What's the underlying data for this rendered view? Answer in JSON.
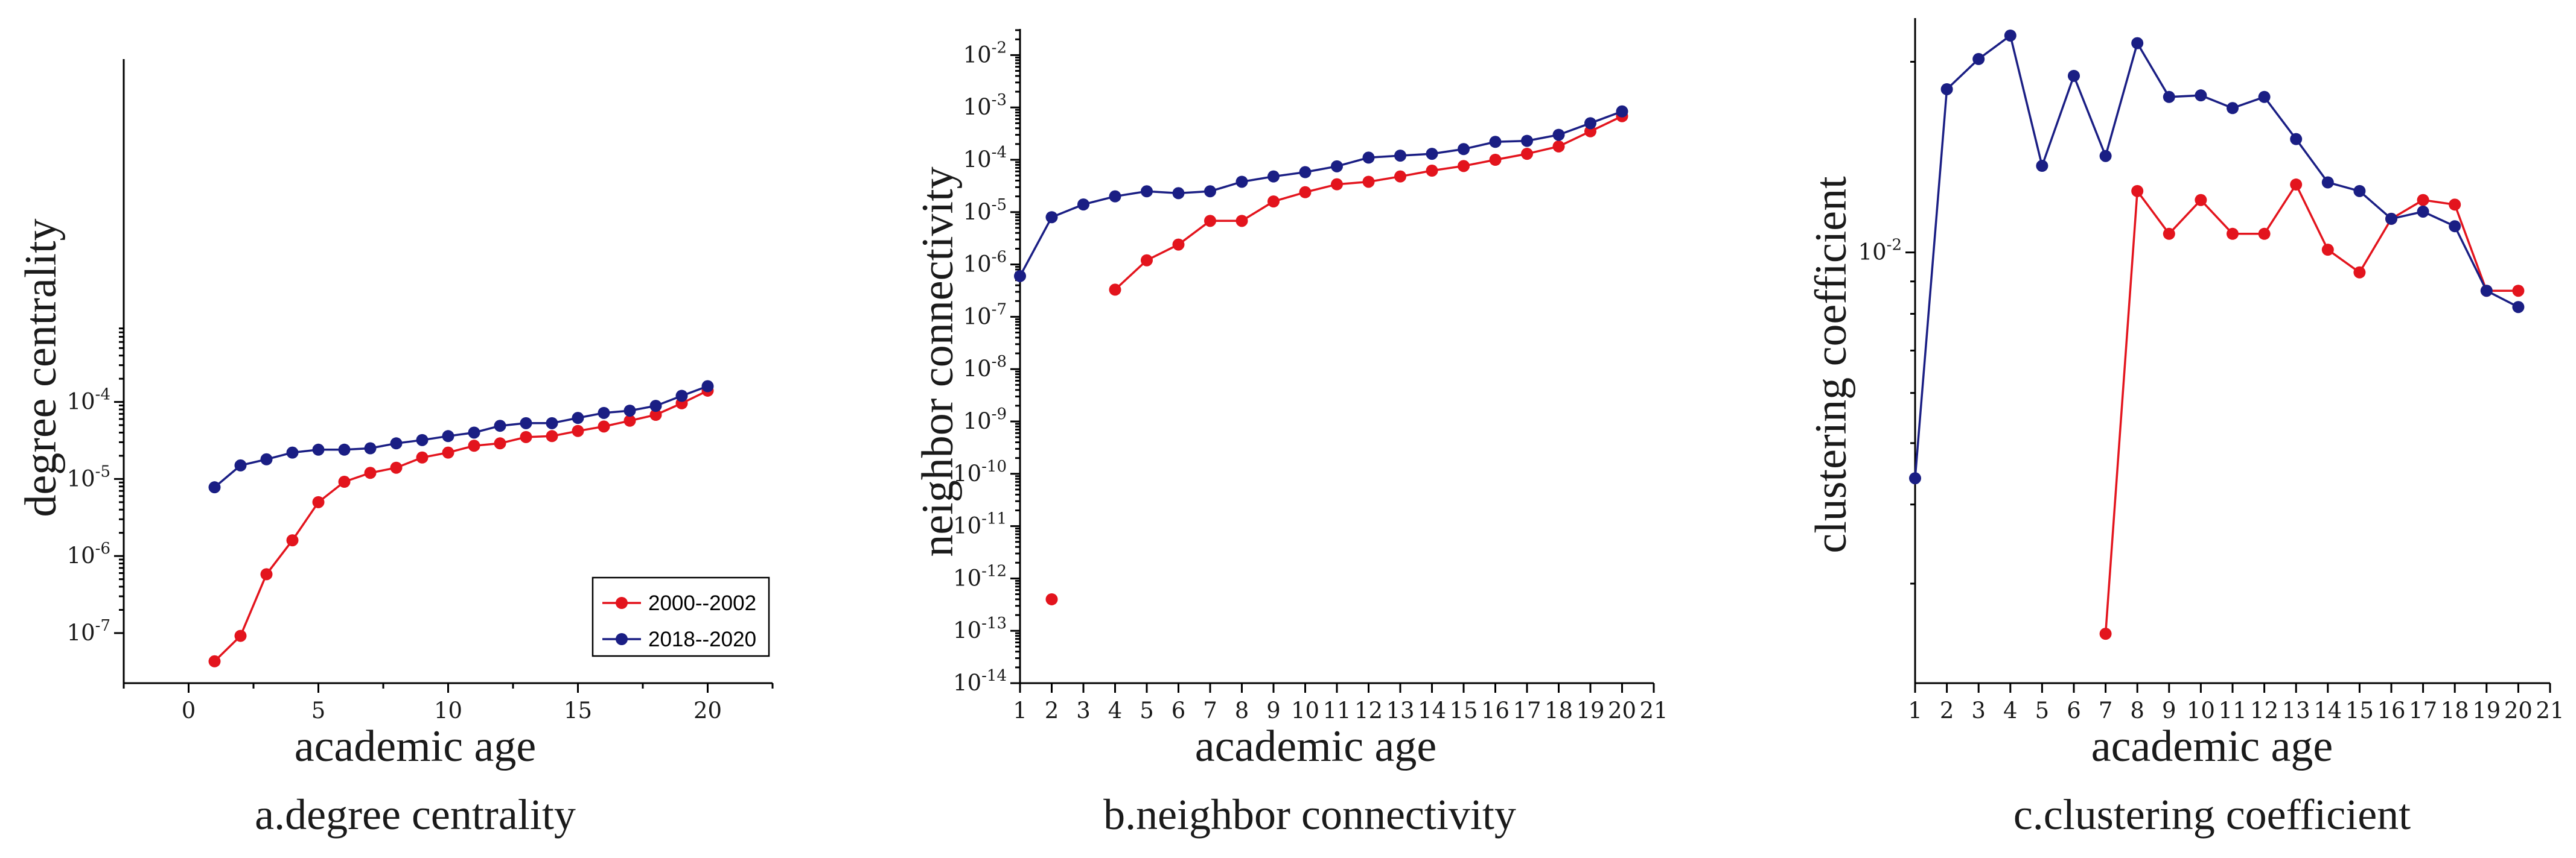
{
  "colors": {
    "red": "#e3141d",
    "blue": "#1a1e84"
  },
  "legend": [
    "2000--2002",
    "2018--2020"
  ],
  "chart_data": [
    {
      "type": "line",
      "caption": "a.degree centrality",
      "xlabel": "academic age",
      "ylabel": "degree centrality",
      "yscale": "log",
      "xlim": [
        -2.5,
        22.5
      ],
      "ylim_exp": [
        -7.65,
        0.45
      ],
      "xticks": [
        0,
        5,
        10,
        15,
        20
      ],
      "yticks_exp": [
        -7,
        -6,
        -5,
        -4
      ],
      "legend_position": "bottom-right",
      "series": [
        {
          "name": "2000--2002",
          "color": "red",
          "x": [
            1,
            2,
            3,
            4,
            5,
            6,
            7,
            8,
            9,
            10,
            11,
            12,
            13,
            14,
            15,
            16,
            17,
            18,
            19,
            20
          ],
          "y": [
            4.3e-08,
            9.2e-08,
            5.8e-07,
            1.6e-06,
            5e-06,
            9.2e-06,
            1.2e-05,
            1.4e-05,
            1.9e-05,
            2.2e-05,
            2.7e-05,
            2.9e-05,
            3.5e-05,
            3.6e-05,
            4.2e-05,
            4.8e-05,
            5.7e-05,
            6.8e-05,
            9.6e-05,
            0.00014
          ]
        },
        {
          "name": "2018--2020",
          "color": "blue",
          "x": [
            1,
            2,
            3,
            4,
            5,
            6,
            7,
            8,
            9,
            10,
            11,
            12,
            13,
            14,
            15,
            16,
            17,
            18,
            19,
            20
          ],
          "y": [
            7.8e-06,
            1.5e-05,
            1.8e-05,
            2.2e-05,
            2.4e-05,
            2.4e-05,
            2.5e-05,
            2.9e-05,
            3.2e-05,
            3.6e-05,
            4e-05,
            4.9e-05,
            5.3e-05,
            5.3e-05,
            6.2e-05,
            7.2e-05,
            7.7e-05,
            8.9e-05,
            0.00012,
            0.00016
          ]
        }
      ]
    },
    {
      "type": "line",
      "caption": "b.neighbor connectivity",
      "xlabel": "academic age",
      "ylabel": "neighbor connectivity",
      "yscale": "log",
      "xlim": [
        1,
        21
      ],
      "ylim_exp": [
        -14,
        -1.5
      ],
      "xticks": [
        1,
        2,
        3,
        4,
        5,
        6,
        7,
        8,
        9,
        10,
        11,
        12,
        13,
        14,
        15,
        16,
        17,
        18,
        19,
        20,
        21
      ],
      "yticks_exp": [
        -14,
        -13,
        -12,
        -11,
        -10,
        -9,
        -8,
        -7,
        -6,
        -5,
        -4,
        -3,
        -2
      ],
      "series": [
        {
          "name": "2000--2002",
          "color": "red",
          "x": [
            2,
            null,
            4,
            5,
            6,
            7,
            8,
            9,
            10,
            11,
            12,
            13,
            14,
            15,
            16,
            17,
            18,
            19,
            20
          ],
          "y": [
            4e-13,
            null,
            3.3e-07,
            1.2e-06,
            2.4e-06,
            6.8e-06,
            6.8e-06,
            1.6e-05,
            2.4e-05,
            3.4e-05,
            3.8e-05,
            4.8e-05,
            6.2e-05,
            7.6e-05,
            0.0001,
            0.00013,
            0.00018,
            0.00035,
            0.00068
          ]
        },
        {
          "name": "2018--2020",
          "color": "blue",
          "x": [
            1,
            2,
            3,
            4,
            5,
            6,
            7,
            8,
            9,
            10,
            11,
            12,
            13,
            14,
            15,
            16,
            17,
            18,
            19,
            20
          ],
          "y": [
            6e-07,
            8e-06,
            1.4e-05,
            2e-05,
            2.5e-05,
            2.3e-05,
            2.5e-05,
            3.8e-05,
            4.8e-05,
            5.8e-05,
            7.5e-05,
            0.00011,
            0.00012,
            0.00013,
            0.00016,
            0.00022,
            0.00023,
            0.0003,
            0.0005,
            0.00084
          ]
        }
      ]
    },
    {
      "type": "line",
      "caption": "c.clustering coefficient",
      "xlabel": "academic age",
      "ylabel": "clustering coefficient",
      "yscale": "log",
      "xlim": [
        1,
        21
      ],
      "ylim_exp": [
        -2.68,
        -1.63
      ],
      "xticks": [
        1,
        2,
        3,
        4,
        5,
        6,
        7,
        8,
        9,
        10,
        11,
        12,
        13,
        14,
        15,
        16,
        17,
        18,
        19,
        20,
        21
      ],
      "yticks_exp": [
        -2
      ],
      "series": [
        {
          "name": "2000--2002",
          "color": "red",
          "x": [
            7,
            8,
            9,
            10,
            11,
            12,
            13,
            14,
            15,
            16,
            17,
            18,
            19,
            20
          ],
          "y": [
            0.0025,
            0.0125,
            0.0107,
            0.0121,
            0.0107,
            0.0107,
            0.0128,
            0.0101,
            0.0093,
            0.0113,
            0.0121,
            0.0119,
            0.0087,
            0.0087
          ]
        },
        {
          "name": "2018--2020",
          "color": "blue",
          "x": [
            1,
            2,
            3,
            4,
            5,
            6,
            7,
            8,
            9,
            10,
            11,
            12,
            13,
            14,
            15,
            16,
            17,
            18,
            19,
            20
          ],
          "y": [
            0.0044,
            0.0181,
            0.0202,
            0.022,
            0.0137,
            0.019,
            0.0142,
            0.0214,
            0.0176,
            0.0177,
            0.0169,
            0.0176,
            0.0151,
            0.0129,
            0.0125,
            0.0113,
            0.0116,
            0.011,
            0.0087,
            0.0082
          ]
        }
      ]
    }
  ]
}
